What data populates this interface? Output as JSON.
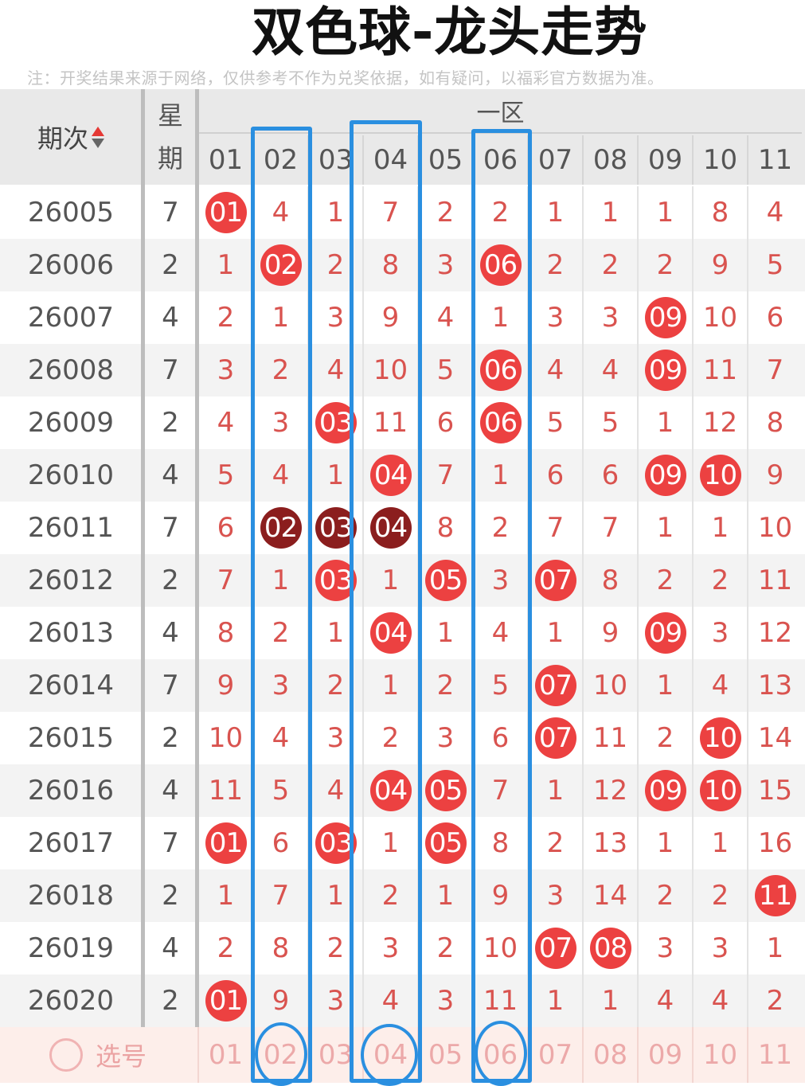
{
  "title": "双色球-龙头走势",
  "note": "注：开奖结果来源于网络，仅供参考不作为兑奖依据，如有疑问，以福彩官方数据为准。",
  "header": {
    "issue": "期次",
    "weekday_top": "星",
    "weekday_bottom": "期",
    "zone": "一区",
    "numbers": [
      "01",
      "02",
      "03",
      "04",
      "05",
      "06",
      "07",
      "08",
      "09",
      "10",
      "11"
    ]
  },
  "rows": [
    {
      "issue": "26005",
      "weekday": "7",
      "cells": [
        "01",
        "4",
        "1",
        "7",
        "2",
        "2",
        "1",
        "1",
        "1",
        "8",
        "4"
      ],
      "hits": [
        0
      ],
      "dark": []
    },
    {
      "issue": "26006",
      "weekday": "2",
      "cells": [
        "1",
        "02",
        "2",
        "8",
        "3",
        "06",
        "2",
        "2",
        "2",
        "9",
        "5"
      ],
      "hits": [
        1,
        5
      ],
      "dark": []
    },
    {
      "issue": "26007",
      "weekday": "4",
      "cells": [
        "2",
        "1",
        "3",
        "9",
        "4",
        "1",
        "3",
        "3",
        "09",
        "10",
        "6"
      ],
      "hits": [
        8
      ],
      "dark": []
    },
    {
      "issue": "26008",
      "weekday": "7",
      "cells": [
        "3",
        "2",
        "4",
        "10",
        "5",
        "06",
        "4",
        "4",
        "09",
        "11",
        "7"
      ],
      "hits": [
        5,
        8
      ],
      "dark": []
    },
    {
      "issue": "26009",
      "weekday": "2",
      "cells": [
        "4",
        "3",
        "03",
        "11",
        "6",
        "06",
        "5",
        "5",
        "1",
        "12",
        "8"
      ],
      "hits": [
        2,
        5
      ],
      "dark": []
    },
    {
      "issue": "26010",
      "weekday": "4",
      "cells": [
        "5",
        "4",
        "1",
        "04",
        "7",
        "1",
        "6",
        "6",
        "09",
        "10",
        "9"
      ],
      "hits": [
        3,
        8,
        9
      ],
      "dark": []
    },
    {
      "issue": "26011",
      "weekday": "7",
      "cells": [
        "6",
        "02",
        "03",
        "04",
        "8",
        "2",
        "7",
        "7",
        "1",
        "1",
        "10"
      ],
      "hits": [
        1,
        2,
        3
      ],
      "dark": [
        1,
        2,
        3
      ]
    },
    {
      "issue": "26012",
      "weekday": "2",
      "cells": [
        "7",
        "1",
        "03",
        "1",
        "05",
        "3",
        "07",
        "8",
        "2",
        "2",
        "11"
      ],
      "hits": [
        2,
        4,
        6
      ],
      "dark": []
    },
    {
      "issue": "26013",
      "weekday": "4",
      "cells": [
        "8",
        "2",
        "1",
        "04",
        "1",
        "4",
        "1",
        "9",
        "09",
        "3",
        "12"
      ],
      "hits": [
        3,
        8
      ],
      "dark": []
    },
    {
      "issue": "26014",
      "weekday": "7",
      "cells": [
        "9",
        "3",
        "2",
        "1",
        "2",
        "5",
        "07",
        "10",
        "1",
        "4",
        "13"
      ],
      "hits": [
        6
      ],
      "dark": []
    },
    {
      "issue": "26015",
      "weekday": "2",
      "cells": [
        "10",
        "4",
        "3",
        "2",
        "3",
        "6",
        "07",
        "11",
        "2",
        "10",
        "14"
      ],
      "hits": [
        6,
        9
      ],
      "dark": []
    },
    {
      "issue": "26016",
      "weekday": "4",
      "cells": [
        "11",
        "5",
        "4",
        "04",
        "05",
        "7",
        "1",
        "12",
        "09",
        "10",
        "15"
      ],
      "hits": [
        3,
        4,
        8,
        9
      ],
      "dark": []
    },
    {
      "issue": "26017",
      "weekday": "7",
      "cells": [
        "01",
        "6",
        "03",
        "1",
        "05",
        "8",
        "2",
        "13",
        "1",
        "1",
        "16"
      ],
      "hits": [
        0,
        2,
        4
      ],
      "dark": []
    },
    {
      "issue": "26018",
      "weekday": "2",
      "cells": [
        "1",
        "7",
        "1",
        "2",
        "1",
        "9",
        "3",
        "14",
        "2",
        "2",
        "11"
      ],
      "hits": [
        10
      ],
      "dark": []
    },
    {
      "issue": "26019",
      "weekday": "4",
      "cells": [
        "2",
        "8",
        "2",
        "3",
        "2",
        "10",
        "07",
        "08",
        "3",
        "3",
        "1"
      ],
      "hits": [
        6,
        7
      ],
      "dark": []
    },
    {
      "issue": "26020",
      "weekday": "2",
      "cells": [
        "01",
        "9",
        "3",
        "4",
        "3",
        "11",
        "1",
        "1",
        "4",
        "4",
        "2"
      ],
      "hits": [
        0
      ],
      "dark": []
    }
  ],
  "footer": {
    "pick_label": "选号",
    "numbers": [
      "01",
      "02",
      "03",
      "04",
      "05",
      "06",
      "07",
      "08",
      "09",
      "10",
      "11"
    ]
  },
  "highlighted_columns": [
    "02",
    "04",
    "06"
  ],
  "colors": {
    "ball": "#ec4141",
    "ball_dark": "#8b1e1e",
    "highlight": "#2a8fe0",
    "miss_text": "#d9534f"
  }
}
